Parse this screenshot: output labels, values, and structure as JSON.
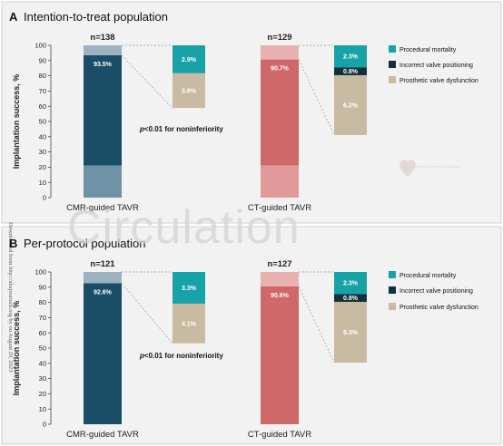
{
  "watermark": "Circulation",
  "side_note": "Downloaded from http://ahajournals.org by on August 29, 2023",
  "logo_text": "American Heart Association",
  "colors": {
    "cmr": "#1a4e66",
    "cmr_light": "#9fb2bf",
    "cmr_base": "#6f92a6",
    "ct": "#cf6868",
    "ct_light": "#e8b0b0",
    "ct_base": "#e09a9a",
    "procedural_mortality": "#17a2a8",
    "incorrect_valve_positioning": "#13303c",
    "prosthetic_valve_dysfunction": "#c9bba1"
  },
  "legend": [
    {
      "key": "procedural_mortality",
      "label": "Procedural mortality"
    },
    {
      "key": "incorrect_valve_positioning",
      "label": "Incorrect valve positioning"
    },
    {
      "key": "prosthetic_valve_dysfunction",
      "label": "Prosthetic valve dysfunction"
    }
  ],
  "chart_data": [
    {
      "type": "bar",
      "panel_letter": "A",
      "title": "Intention-to-treat population",
      "ylabel": "Implantation success, %",
      "ylim": [
        0,
        100
      ],
      "yticks": [
        0,
        10,
        20,
        30,
        40,
        50,
        60,
        70,
        80,
        90,
        100
      ],
      "pvalue_prefix": "p",
      "pvalue_suffix": "<0.01 for noninferiority",
      "groups": [
        {
          "category": "CMR-guided TAVR",
          "n_label": "n=138",
          "success": 93.5,
          "success_label": "93.5%",
          "failures": [
            {
              "key": "procedural_mortality",
              "value": 2.9,
              "label": "2.9%"
            },
            {
              "key": "incorrect_valve_positioning",
              "value": 0,
              "label": ""
            },
            {
              "key": "prosthetic_valve_dysfunction",
              "value": 3.6,
              "label": "3.6%"
            }
          ]
        },
        {
          "category": "CT-guided TAVR",
          "n_label": "n=129",
          "success": 90.7,
          "success_label": "90.7%",
          "failures": [
            {
              "key": "procedural_mortality",
              "value": 2.3,
              "label": "2.3%"
            },
            {
              "key": "incorrect_valve_positioning",
              "value": 0.8,
              "label": "0.8%"
            },
            {
              "key": "prosthetic_valve_dysfunction",
              "value": 6.2,
              "label": "6.2%"
            }
          ]
        }
      ]
    },
    {
      "type": "bar",
      "panel_letter": "B",
      "title": "Per-protocol population",
      "ylabel": "Implantation success, %",
      "ylim": [
        0,
        100
      ],
      "yticks": [
        0,
        10,
        20,
        30,
        40,
        50,
        60,
        70,
        80,
        90,
        100
      ],
      "pvalue_prefix": "p",
      "pvalue_suffix": "<0.01 for noninferiority",
      "groups": [
        {
          "category": "CMR-guided TAVR",
          "n_label": "n=121",
          "success": 92.6,
          "success_label": "92.6%",
          "failures": [
            {
              "key": "procedural_mortality",
              "value": 3.3,
              "label": "3.3%"
            },
            {
              "key": "incorrect_valve_positioning",
              "value": 0,
              "label": ""
            },
            {
              "key": "prosthetic_valve_dysfunction",
              "value": 4.1,
              "label": "4.1%"
            }
          ]
        },
        {
          "category": "CT-guided TAVR",
          "n_label": "n=127",
          "success": 90.6,
          "success_label": "90.6%",
          "failures": [
            {
              "key": "procedural_mortality",
              "value": 2.3,
              "label": "2.3%"
            },
            {
              "key": "incorrect_valve_positioning",
              "value": 0.8,
              "label": "0.8%"
            },
            {
              "key": "prosthetic_valve_dysfunction",
              "value": 6.3,
              "label": "6.3%"
            }
          ]
        }
      ]
    }
  ]
}
